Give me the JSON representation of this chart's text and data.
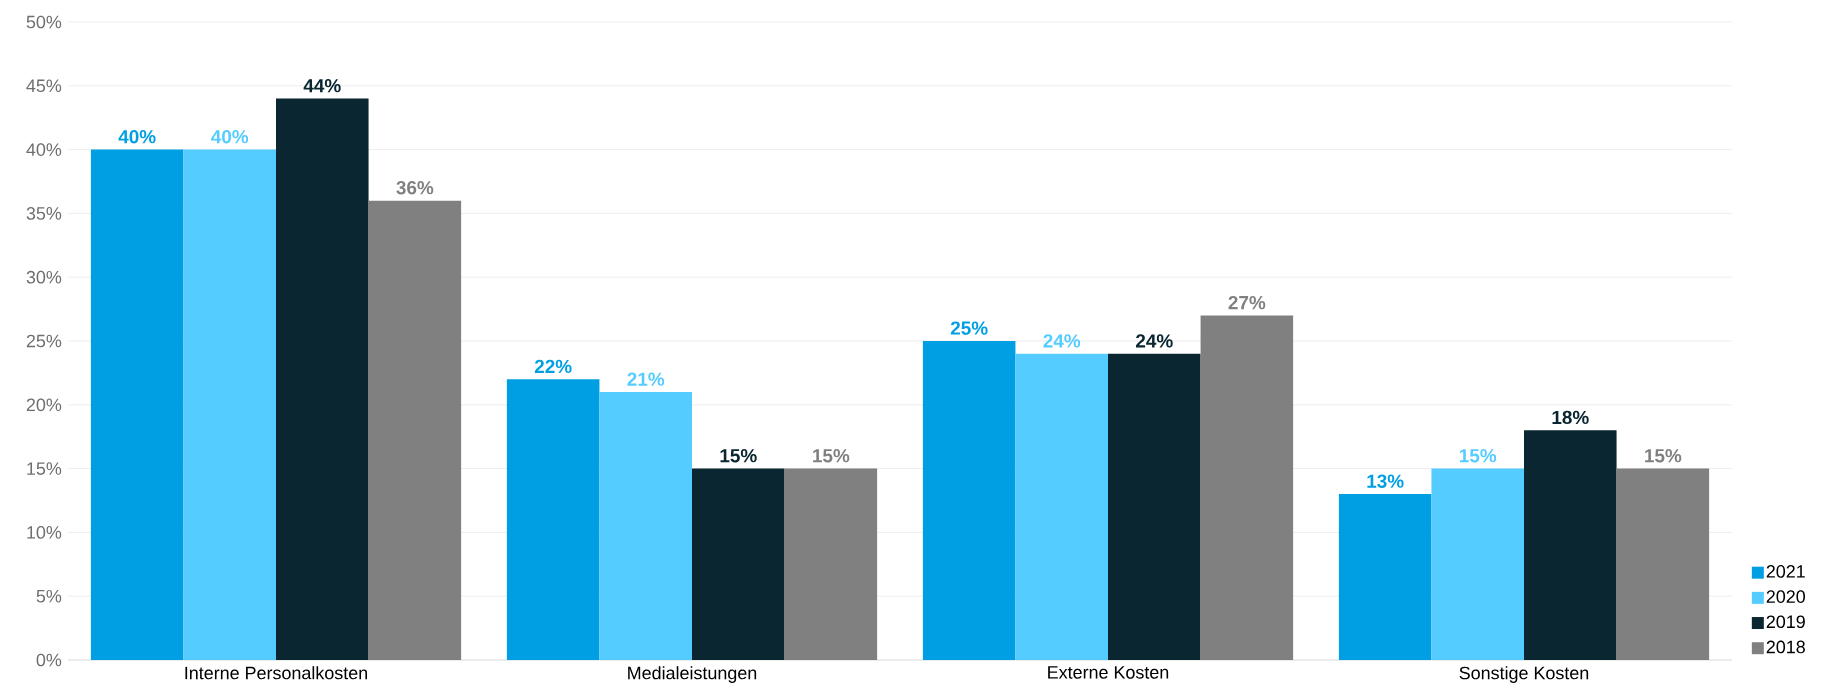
{
  "chart_data": {
    "type": "bar",
    "categories": [
      "Interne Personalkosten",
      "Medialeistungen",
      "Externe Kosten",
      "Sonstige Kosten"
    ],
    "series": [
      {
        "name": "2021",
        "color": "#009fe3",
        "values": [
          40,
          22,
          25,
          13
        ],
        "value_labels": [
          "40%",
          "22%",
          "25%",
          "13%"
        ]
      },
      {
        "name": "2020",
        "color": "#55ccff",
        "values": [
          40,
          21,
          24,
          15
        ],
        "value_labels": [
          "40%",
          "21%",
          "24%",
          "15%"
        ]
      },
      {
        "name": "2019",
        "color": "#0a2630",
        "values": [
          44,
          15,
          24,
          18
        ],
        "value_labels": [
          "44%",
          "15%",
          "24%",
          "18%"
        ]
      },
      {
        "name": "2018",
        "color": "#808080",
        "values": [
          36,
          15,
          27,
          15
        ],
        "value_labels": [
          "36%",
          "15%",
          "27%",
          "15%"
        ]
      }
    ],
    "ylim": [
      0,
      50
    ],
    "yticks": [
      {
        "value": 0,
        "label": "0%"
      },
      {
        "value": 5,
        "label": "5%"
      },
      {
        "value": 10,
        "label": "10%"
      },
      {
        "value": 15,
        "label": "15%"
      },
      {
        "value": 20,
        "label": "20%"
      },
      {
        "value": 25,
        "label": "25%"
      },
      {
        "value": 30,
        "label": "30%"
      },
      {
        "value": 35,
        "label": "35%"
      },
      {
        "value": 40,
        "label": "40%"
      },
      {
        "value": 45,
        "label": "45%"
      },
      {
        "value": 50,
        "label": "50%"
      }
    ],
    "grid": "y",
    "legend": "bottom right"
  }
}
